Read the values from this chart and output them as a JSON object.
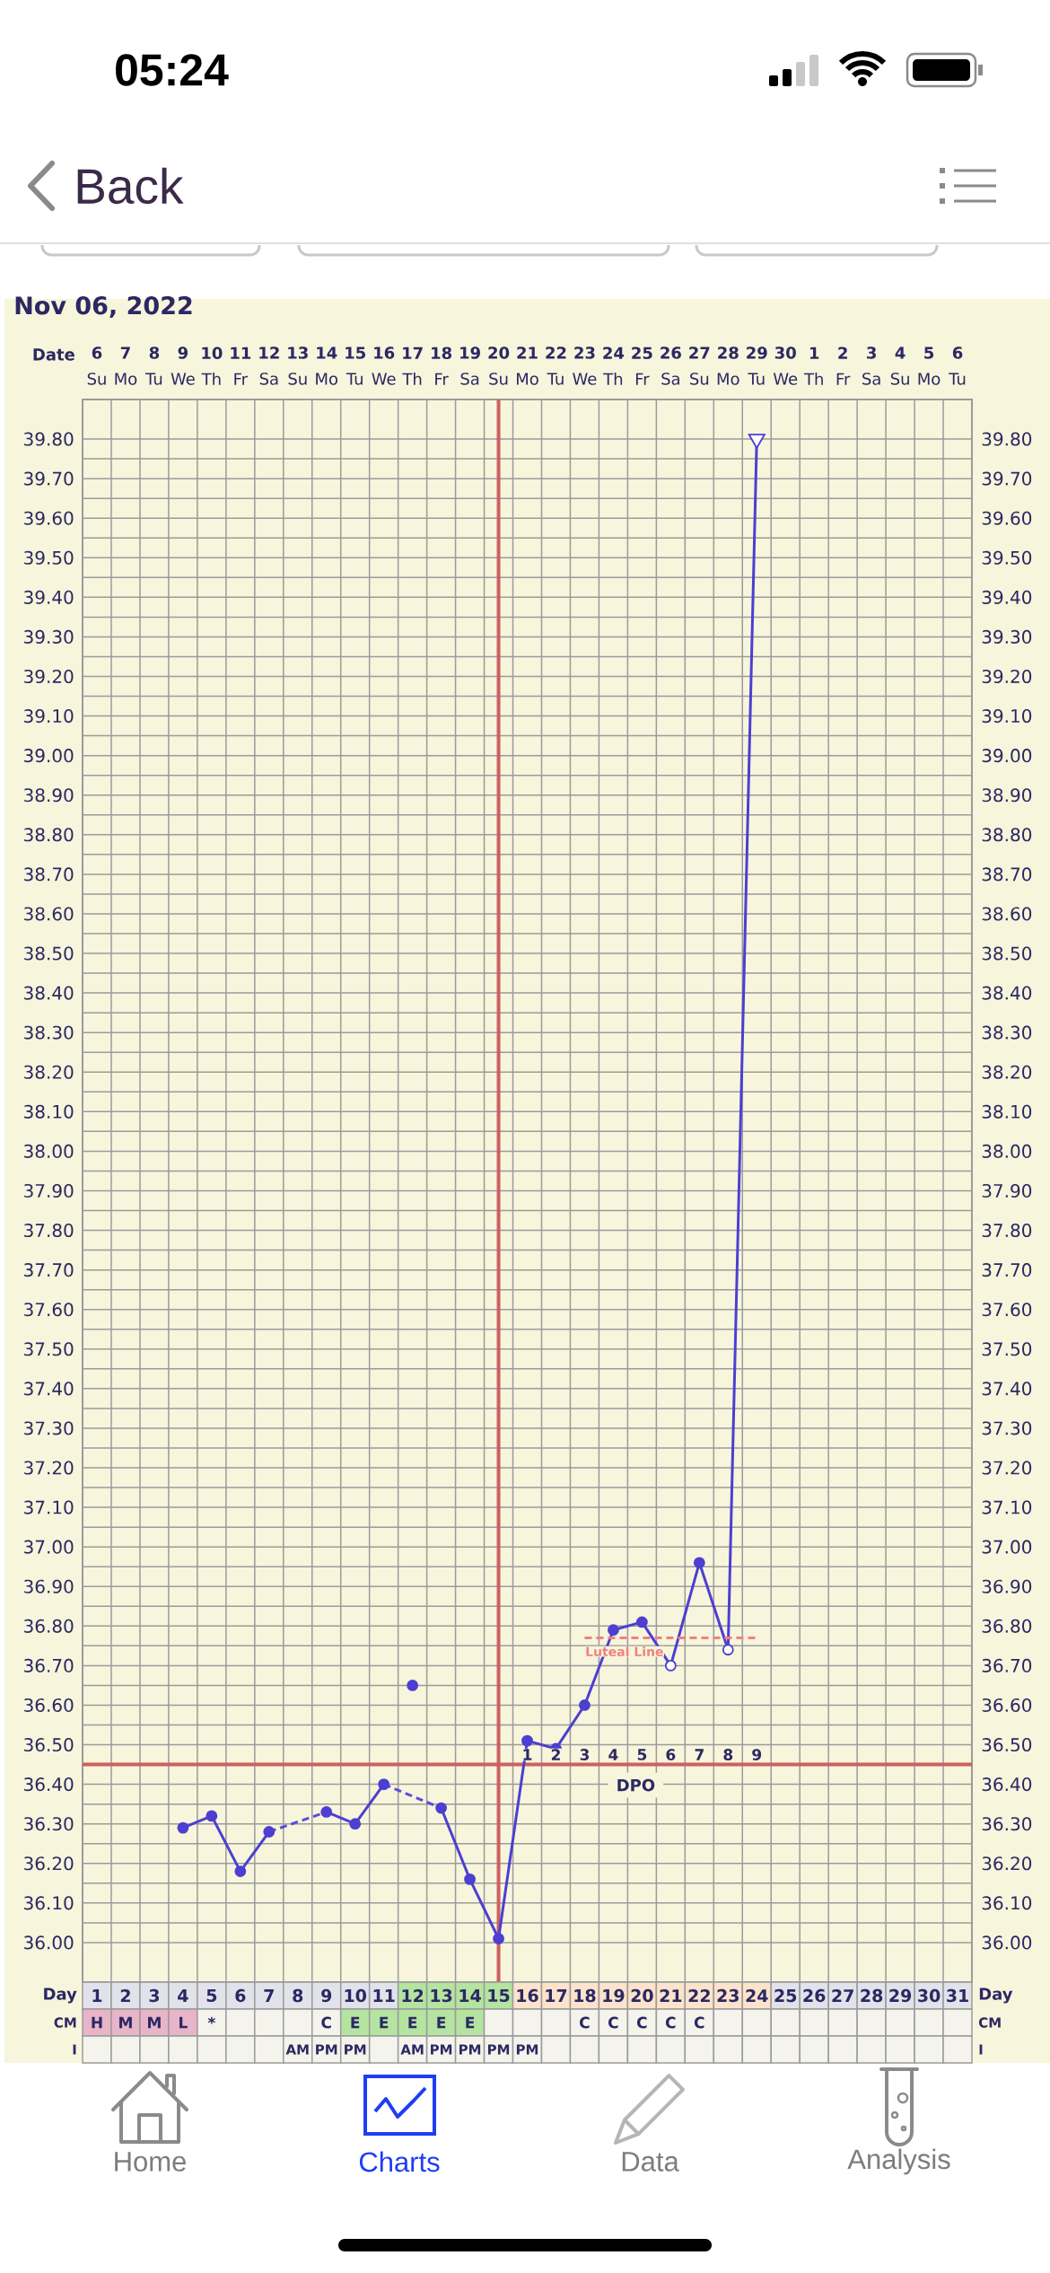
{
  "chart_data": [
    {
      "type": "line",
      "title": "Nov 06, 2022",
      "xlabel": "Date",
      "xlim": [
        "2022-11-05T12:00",
        "2022-12-06T12:00"
      ],
      "xticks": [
        {
          "value": "2022-11-06",
          "label": "**6** Su"
        },
        {
          "value": "2022-11-07",
          "label": "**7** Mo"
        },
        {
          "value": "2022-11-08",
          "label": "**8** Tu"
        },
        {
          "value": "2022-11-09",
          "label": "**9** We"
        },
        {
          "value": "2022-11-10",
          "label": "**10** Th"
        },
        {
          "value": "2022-11-11",
          "label": "**11** Fr"
        },
        {
          "value": "2022-11-12",
          "label": "**12** Sa"
        },
        {
          "value": "2022-11-13",
          "label": "**13** Su"
        },
        {
          "value": "2022-11-14",
          "label": "**14** Mo"
        },
        {
          "value": "2022-11-15",
          "label": "**15** Tu"
        },
        {
          "value": "2022-11-16",
          "label": "**16** We"
        },
        {
          "value": "2022-11-17",
          "label": "**17** Th"
        },
        {
          "value": "2022-11-18",
          "label": "**18** Fr"
        },
        {
          "value": "2022-11-19",
          "label": "**19** Sa"
        },
        {
          "value": "2022-11-20",
          "label": "**20** Su"
        },
        {
          "value": "2022-11-21",
          "label": "**21** Mo"
        },
        {
          "value": "2022-11-22",
          "label": "**22** Tu"
        },
        {
          "value": "2022-11-23",
          "label": "**23** We"
        },
        {
          "value": "2022-11-24",
          "label": "**24** Th"
        },
        {
          "value": "2022-11-25",
          "label": "**25** Fr"
        },
        {
          "value": "2022-11-26",
          "label": "**26** Sa"
        },
        {
          "value": "2022-11-27",
          "label": "**27** Su"
        },
        {
          "value": "2022-11-28",
          "label": "**28** Mo"
        },
        {
          "value": "2022-11-29",
          "label": "**29** Tu"
        },
        {
          "value": "2022-11-30",
          "label": "**30** We"
        },
        {
          "value": "2022-12-01",
          "label": "**1** Th"
        },
        {
          "value": "2022-12-02",
          "label": "**2** Fr"
        },
        {
          "value": "2022-12-03",
          "label": "**3** Sa"
        },
        {
          "value": "2022-12-04",
          "label": "**4** Su"
        },
        {
          "value": "2022-12-05",
          "label": "**5** Mo"
        },
        {
          "value": "2022-12-06",
          "label": "**6** Tu"
        }
      ],
      "ylim": [
        35.9,
        39.9
      ],
      "yticks": [
        {
          "value": 36.0,
          "label": "36.00"
        },
        {
          "value": 36.1,
          "label": "36.10"
        },
        {
          "value": 36.2,
          "label": "36.20"
        },
        {
          "value": 36.3,
          "label": "36.30"
        },
        {
          "value": 36.4,
          "label": "36.40"
        },
        {
          "value": 36.5,
          "label": "36.50"
        },
        {
          "value": 36.6,
          "label": "36.60"
        },
        {
          "value": 36.7,
          "label": "36.70"
        },
        {
          "value": 36.8,
          "label": "36.80"
        },
        {
          "value": 36.9,
          "label": "36.90"
        },
        {
          "value": 37.0,
          "label": "37.00"
        },
        {
          "value": 37.1,
          "label": "37.10"
        },
        {
          "value": 37.2,
          "label": "37.20"
        },
        {
          "value": 37.3,
          "label": "37.30"
        },
        {
          "value": 37.4,
          "label": "37.40"
        },
        {
          "value": 37.5,
          "label": "37.50"
        },
        {
          "value": 37.6,
          "label": "37.60"
        },
        {
          "value": 37.7,
          "label": "37.70"
        },
        {
          "value": 37.8,
          "label": "37.80"
        },
        {
          "value": 37.9,
          "label": "37.90"
        },
        {
          "value": 38.0,
          "label": "38.00"
        },
        {
          "value": 38.1,
          "label": "38.10"
        },
        {
          "value": 38.2,
          "label": "38.20"
        },
        {
          "value": 38.3,
          "label": "38.30"
        },
        {
          "value": 38.4,
          "label": "38.40"
        },
        {
          "value": 38.5,
          "label": "38.50"
        },
        {
          "value": 38.6,
          "label": "38.60"
        },
        {
          "value": 38.7,
          "label": "38.70"
        },
        {
          "value": 38.8,
          "label": "38.80"
        },
        {
          "value": 38.9,
          "label": "38.90"
        },
        {
          "value": 39.0,
          "label": "39.00"
        },
        {
          "value": 39.1,
          "label": "39.10"
        },
        {
          "value": 39.2,
          "label": "39.20"
        },
        {
          "value": 39.3,
          "label": "39.30"
        },
        {
          "value": 39.4,
          "label": "39.40"
        },
        {
          "value": 39.5,
          "label": "39.50"
        },
        {
          "value": 39.6,
          "label": "39.60"
        },
        {
          "value": 39.7,
          "label": "39.70"
        },
        {
          "value": 39.8,
          "label": "39.80"
        }
      ],
      "y2lim": [
        35.9,
        39.9
      ],
      "y2ticks": [
        {
          "value": 36.0,
          "label": "36.00"
        },
        {
          "value": 36.1,
          "label": "36.10"
        },
        {
          "value": 36.2,
          "label": "36.20"
        },
        {
          "value": 36.3,
          "label": "36.30"
        },
        {
          "value": 36.4,
          "label": "36.40"
        },
        {
          "value": 36.5,
          "label": "36.50"
        },
        {
          "value": 36.6,
          "label": "36.60"
        },
        {
          "value": 36.7,
          "label": "36.70"
        },
        {
          "value": 36.8,
          "label": "36.80"
        },
        {
          "value": 36.9,
          "label": "36.90"
        },
        {
          "value": 37.0,
          "label": "37.00"
        },
        {
          "value": 37.1,
          "label": "37.10"
        },
        {
          "value": 37.2,
          "label": "37.20"
        },
        {
          "value": 37.3,
          "label": "37.30"
        },
        {
          "value": 37.4,
          "label": "37.40"
        },
        {
          "value": 37.5,
          "label": "37.50"
        },
        {
          "value": 37.6,
          "label": "37.60"
        },
        {
          "value": 37.7,
          "label": "37.70"
        },
        {
          "value": 37.8,
          "label": "37.80"
        },
        {
          "value": 37.9,
          "label": "37.90"
        },
        {
          "value": 38.0,
          "label": "38.00"
        },
        {
          "value": 38.1,
          "label": "38.10"
        },
        {
          "value": 38.2,
          "label": "38.20"
        },
        {
          "value": 38.3,
          "label": "38.30"
        },
        {
          "value": 38.4,
          "label": "38.40"
        },
        {
          "value": 38.5,
          "label": "38.50"
        },
        {
          "value": 38.6,
          "label": "38.60"
        },
        {
          "value": 38.7,
          "label": "38.70"
        },
        {
          "value": 38.8,
          "label": "38.80"
        },
        {
          "value": 38.9,
          "label": "38.90"
        },
        {
          "value": 39.0,
          "label": "39.00"
        },
        {
          "value": 39.1,
          "label": "39.10"
        },
        {
          "value": 39.2,
          "label": "39.20"
        },
        {
          "value": 39.3,
          "label": "39.30"
        },
        {
          "value": 39.4,
          "label": "39.40"
        },
        {
          "value": 39.5,
          "label": "39.50"
        },
        {
          "value": 39.6,
          "label": "39.60"
        },
        {
          "value": 39.7,
          "label": "39.70"
        },
        {
          "value": 39.8,
          "label": "39.80"
        }
      ],
      "grid": true,
      "series": [
        {
          "type": "line",
          "color": "#4c3fd1",
          "line_style": "solid",
          "marker": "none",
          "x": [
            "2022-11-09",
            "2022-11-10",
            "2022-11-11",
            "2022-11-12",
            "2022-11-13",
            "2022-11-14",
            "2022-11-15",
            "2022-11-16",
            "2022-11-17",
            "2022-11-18",
            "2022-11-19",
            "2022-11-20",
            "2022-11-21",
            "2022-11-22",
            "2022-11-23",
            "2022-11-24",
            "2022-11-25",
            "2022-11-26",
            "2022-11-27",
            "2022-11-28",
            "2022-11-29"
          ],
          "values": [
            36.29,
            36.32,
            36.18,
            36.28,
            null,
            36.33,
            36.3,
            36.4,
            null,
            36.34,
            36.16,
            36.01,
            36.51,
            36.49,
            36.6,
            36.79,
            36.81,
            36.7,
            36.96,
            36.74,
            39.8
          ]
        },
        {
          "type": "line",
          "color": "#5a4ed8",
          "line_style": "dashed",
          "marker": "none",
          "x": [
            "2022-11-12",
            "2022-11-14"
          ],
          "values": [
            36.28,
            36.33
          ]
        },
        {
          "type": "line",
          "color": "#5a4ed8",
          "line_style": "dashed",
          "marker": "none",
          "x": [
            "2022-11-16",
            "2022-11-18"
          ],
          "values": [
            36.4,
            36.34
          ]
        },
        {
          "type": "scatter",
          "color": "#4c3fd1",
          "marker": "circle",
          "x": [
            "2022-11-09",
            "2022-11-10",
            "2022-11-11",
            "2022-11-12",
            "2022-11-14",
            "2022-11-15",
            "2022-11-16",
            "2022-11-17",
            "2022-11-18",
            "2022-11-19",
            "2022-11-20",
            "2022-11-21",
            "2022-11-22",
            "2022-11-23",
            "2022-11-24",
            "2022-11-25",
            "2022-11-27"
          ],
          "values": [
            36.29,
            36.32,
            36.18,
            36.28,
            36.33,
            36.3,
            36.4,
            36.65,
            36.34,
            36.16,
            36.01,
            36.51,
            36.49,
            36.6,
            36.79,
            36.81,
            36.96
          ]
        },
        {
          "type": "scatter",
          "color": "#ffffff",
          "marker": "circle",
          "x": [
            "2022-11-26",
            "2022-11-28"
          ],
          "values": [
            36.7,
            36.74
          ]
        },
        {
          "type": "scatter",
          "color": "#ffffff",
          "marker": "triangle",
          "x": [
            "2022-11-29"
          ],
          "values": [
            39.8
          ]
        },
        {
          "type": "line",
          "name": "Luteal Line",
          "color": "#f08080",
          "line_style": "dashed",
          "marker": "none",
          "x": [
            "2022-11-23",
            "2022-11-29"
          ],
          "values": [
            36.77,
            36.77
          ]
        }
      ],
      "ref_lines": [
        {
          "axis": "x",
          "value": "2022-11-20",
          "color": "#cc6060"
        },
        {
          "axis": "y",
          "value": 36.45,
          "label": "DPO",
          "color": "#cc6060"
        }
      ],
      "annotations": [
        "05:24",
        "Back",
        "Home",
        "Charts",
        "Data",
        "Analysis",
        {
          "text": "1",
          "x": "2022-11-21",
          "y": 36.475
        },
        {
          "text": "2",
          "x": "2022-11-22",
          "y": 36.475
        },
        {
          "text": "3",
          "x": "2022-11-23",
          "y": 36.475
        },
        {
          "text": "4",
          "x": "2022-11-24",
          "y": 36.475
        },
        {
          "text": "5",
          "x": "2022-11-25",
          "y": 36.475
        },
        {
          "text": "6",
          "x": "2022-11-26",
          "y": 36.475
        },
        {
          "text": "7",
          "x": "2022-11-27",
          "y": 36.475
        },
        {
          "text": "8",
          "x": "2022-11-28",
          "y": 36.475
        },
        {
          "text": "9",
          "x": "2022-11-29",
          "y": 36.475
        }
      ]
    },
    {
      "type": "heatmap",
      "tick_labels": "y",
      "categories": [
        null,
        null,
        null,
        null,
        null,
        null,
        null,
        null,
        null,
        null,
        null,
        null,
        null,
        null,
        null,
        null,
        null,
        null,
        null,
        null,
        null,
        null,
        null,
        null,
        null,
        null,
        null,
        null,
        null,
        null,
        null
      ],
      "y_categories": [
        "Day",
        "CM",
        "I"
      ],
      "y2_categories": [
        "Day",
        "CM",
        "I"
      ],
      "cells": [
        [
          null,
          null,
          null,
          null,
          null,
          null,
          null,
          null,
          null,
          null,
          null,
          null,
          null,
          null,
          null,
          null,
          null,
          null,
          null,
          null,
          null,
          null,
          null,
          null,
          null,
          null,
          null,
          null,
          null,
          null,
          null
        ],
        [
          null,
          null,
          null,
          null,
          null,
          null,
          null,
          null,
          null,
          null,
          null,
          null,
          null,
          null,
          null,
          null,
          null,
          null,
          null,
          null,
          null,
          null,
          null,
          null,
          null,
          null,
          null,
          null,
          null,
          null,
          null
        ],
        [
          null,
          null,
          null,
          null,
          null,
          null,
          null,
          null,
          null,
          null,
          null,
          null,
          null,
          null,
          null,
          null,
          null,
          null,
          null,
          null,
          null,
          null,
          null,
          null,
          null,
          null,
          null,
          null,
          null,
          null,
          null
        ]
      ],
      "cell_labels": [
        [
          "1",
          "2",
          "3",
          "4",
          "5",
          "6",
          "7",
          "8",
          "9",
          "10",
          "11",
          "12",
          "13",
          "14",
          "15",
          "16",
          "17",
          "18",
          "19",
          "20",
          "21",
          "22",
          "23",
          "24",
          "25",
          "26",
          "27",
          "28",
          "29",
          "30",
          "31"
        ],
        [
          "H",
          "M",
          "M",
          "L",
          "*",
          null,
          null,
          null,
          "C",
          "E",
          "E",
          "E",
          "E",
          "E",
          null,
          null,
          null,
          "C",
          "C",
          "C",
          "C",
          "C",
          null,
          null,
          null,
          null,
          null,
          null,
          null,
          null,
          null
        ],
        [
          null,
          null,
          null,
          null,
          null,
          null,
          null,
          "AM",
          "PM",
          "PM",
          null,
          "AM",
          "PM",
          "PM",
          "PM",
          "PM",
          null,
          null,
          null,
          null,
          null,
          null,
          null,
          null,
          null,
          null,
          null,
          null,
          null,
          null,
          null
        ]
      ],
      "colors": [
        [
          "#e2e2ea",
          "#e2e2ea",
          "#e2e2ea",
          "#e2e2ea",
          "#e2e2ea",
          "#e2e2ea",
          "#e2e2ea",
          "#e2e2ea",
          "#e2e2ea",
          "#e2e2ea",
          "#e2e2ea",
          "#b4e4a0",
          "#b4e4a0",
          "#b4e4a0",
          "#b4e4a0",
          "#fde3cb",
          "#fde3cb",
          "#fde3cb",
          "#fde3cb",
          "#fde3cb",
          "#fde3cb",
          "#fde3cb",
          "#fde3cb",
          "#fde3cb",
          "#e2e2ea",
          "#e2e2ea",
          "#e2e2ea",
          "#e2e2ea",
          "#e2e2ea",
          "#e2e2ea",
          "#e2e2ea"
        ],
        [
          "#e8b4c8",
          "#e8b4c8",
          "#e8b4c8",
          "#e8b4c8",
          "#f4f4ec",
          "#f4f4ec",
          "#f4f4ec",
          "#f4f4ec",
          "#f4f4ec",
          "#b4e4a0",
          "#b4e4a0",
          "#b4e4a0",
          "#b4e4a0",
          "#b4e4a0",
          "#f4f4ec",
          "#f4f4ec",
          "#f4f4ec",
          "#f4f4ec",
          "#f4f4ec",
          "#f4f4ec",
          "#f4f4ec",
          "#f4f4ec",
          "#f4f4ec",
          "#f4f4ec",
          "#f4f4ec",
          "#f4f4ec",
          "#f4f4ec",
          "#f4f4ec",
          "#f4f4ec",
          "#f4f4ec",
          "#f4f4ec"
        ],
        [
          "#f4f4ec",
          "#f4f4ec",
          "#f4f4ec",
          "#f4f4ec",
          "#f4f4ec",
          "#f4f4ec",
          "#f4f4ec",
          "#f4f4ec",
          "#f4f4ec",
          "#f4f4ec",
          "#f4f4ec",
          "#f4f4ec",
          "#f4f4ec",
          "#f4f4ec",
          "#f4f4ec",
          "#f4f4ec",
          "#f4f4ec",
          "#f4f4ec",
          "#f4f4ec",
          "#f4f4ec",
          "#f4f4ec",
          "#f4f4ec",
          "#f4f4ec",
          "#f4f4ec",
          "#f4f4ec",
          "#f4f4ec",
          "#f4f4ec",
          "#f4f4ec",
          "#f4f4ec",
          "#f4f4ec",
          "#f4f4ec"
        ]
      ]
    }
  ]
}
